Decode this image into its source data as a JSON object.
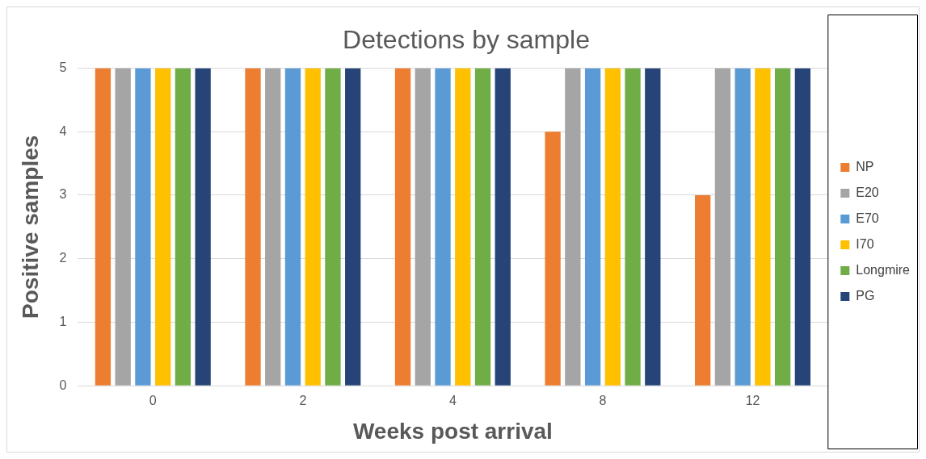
{
  "chart_data": {
    "type": "bar",
    "title": "Detections by sample",
    "xlabel": "Weeks post arrival",
    "ylabel": "Positive samples",
    "categories": [
      "0",
      "2",
      "4",
      "8",
      "12"
    ],
    "series": [
      {
        "name": "NP",
        "color": "#ed7d31",
        "values": [
          5,
          5,
          5,
          4,
          3
        ]
      },
      {
        "name": "E20",
        "color": "#a5a5a5",
        "values": [
          5,
          5,
          5,
          5,
          5
        ]
      },
      {
        "name": "E70",
        "color": "#5b9bd5",
        "values": [
          5,
          5,
          5,
          5,
          5
        ]
      },
      {
        "name": "I70",
        "color": "#ffc000",
        "values": [
          5,
          5,
          5,
          5,
          5
        ]
      },
      {
        "name": "Longmire",
        "color": "#70ad47",
        "values": [
          5,
          5,
          5,
          5,
          5
        ]
      },
      {
        "name": "PG",
        "color": "#264478",
        "values": [
          5,
          5,
          5,
          5,
          5
        ]
      }
    ],
    "ylim": [
      0,
      5
    ],
    "yticks": [
      0,
      1,
      2,
      3,
      4,
      5
    ],
    "grid": "y",
    "legend": "right"
  }
}
